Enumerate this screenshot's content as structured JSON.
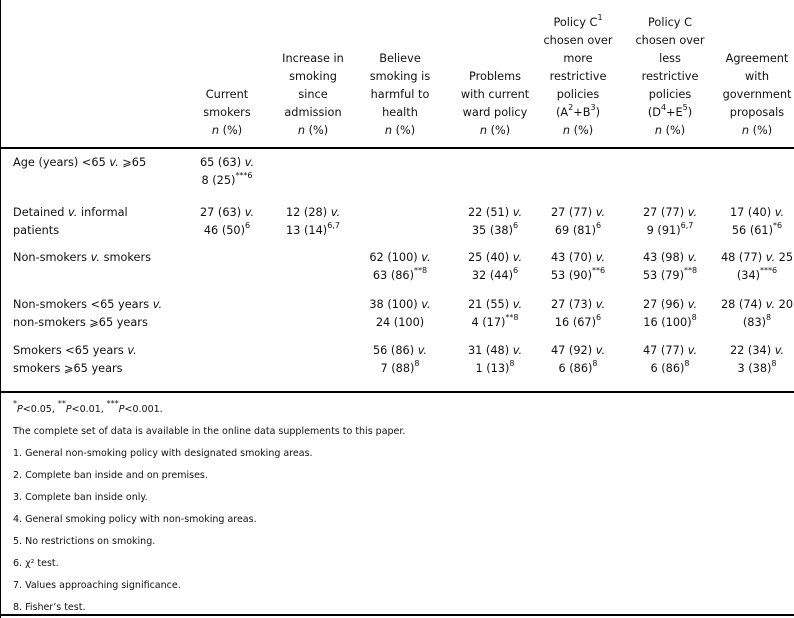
{
  "table": {
    "columns": [
      [
        [
          "Current"
        ],
        [
          "smokers"
        ],
        [
          {
            "i": "n"
          },
          " (%)"
        ]
      ],
      [
        [
          "Increase in"
        ],
        [
          "smoking"
        ],
        [
          "since"
        ],
        [
          "admission"
        ],
        [
          {
            "i": "n"
          },
          " (%)"
        ]
      ],
      [
        [
          "Believe"
        ],
        [
          "smoking is"
        ],
        [
          "harmful to"
        ],
        [
          "health"
        ],
        [
          {
            "i": "n"
          },
          " (%)"
        ]
      ],
      [
        [
          "Problems"
        ],
        [
          "with current"
        ],
        [
          "ward policy"
        ],
        [
          {
            "i": "n"
          },
          " (%)"
        ]
      ],
      [
        [
          "Policy C",
          {
            "sup": "1"
          }
        ],
        [
          "chosen over"
        ],
        [
          "more"
        ],
        [
          "restrictive"
        ],
        [
          "policies"
        ],
        [
          "(A",
          {
            "sup": "2"
          },
          "+B",
          {
            "sup": "3"
          },
          ")"
        ],
        [
          {
            "i": "n"
          },
          " (%)"
        ]
      ],
      [
        [
          "Policy C"
        ],
        [
          "chosen over"
        ],
        [
          "less"
        ],
        [
          "restrictive"
        ],
        [
          "policies"
        ],
        [
          "(D",
          {
            "sup": "4"
          },
          "+E",
          {
            "sup": "5"
          },
          ")"
        ],
        [
          {
            "i": "n"
          },
          " (%)"
        ]
      ],
      [
        [
          "Agreement"
        ],
        [
          "with"
        ],
        [
          "government"
        ],
        [
          "proposals"
        ],
        [
          {
            "i": "n"
          },
          " (%)"
        ]
      ]
    ],
    "rows": [
      {
        "label": [
          [
            "Age (years) <65 ",
            {
              "i": "v."
            },
            " ⩾65"
          ]
        ],
        "cells": [
          [
            [
              "65 (63) ",
              {
                "i": "v."
              }
            ],
            [
              "8 (25)",
              {
                "sup": "***6"
              }
            ]
          ],
          null,
          null,
          null,
          null,
          null,
          null
        ]
      },
      {
        "label": [
          [
            "Detained ",
            {
              "i": "v."
            },
            " informal"
          ],
          [
            "patients"
          ]
        ],
        "cells": [
          [
            [
              "27 (63) ",
              {
                "i": "v."
              }
            ],
            [
              "46 (50)",
              {
                "sup": "6"
              }
            ]
          ],
          [
            [
              "12 (28) ",
              {
                "i": "v."
              }
            ],
            [
              "13 (14)",
              {
                "sup": "6,7"
              }
            ]
          ],
          null,
          [
            [
              "22 (51) ",
              {
                "i": "v."
              }
            ],
            [
              "35 (38)",
              {
                "sup": "6"
              }
            ]
          ],
          [
            [
              "27 (77) ",
              {
                "i": "v."
              }
            ],
            [
              "69 (81)",
              {
                "sup": "6"
              }
            ]
          ],
          [
            [
              "27 (77) ",
              {
                "i": "v."
              }
            ],
            [
              "9 (91)",
              {
                "sup": "6,7"
              }
            ]
          ],
          [
            [
              "17 (40) ",
              {
                "i": "v."
              }
            ],
            [
              "56 (61)",
              {
                "sup": "*6"
              }
            ]
          ]
        ]
      },
      {
        "label": [
          [
            "Non-smokers ",
            {
              "i": "v."
            },
            " smokers"
          ]
        ],
        "cells": [
          null,
          null,
          [
            [
              "62 (100) ",
              {
                "i": "v."
              }
            ],
            [
              "63 (86)",
              {
                "sup": "**8"
              }
            ]
          ],
          [
            [
              "25 (40) ",
              {
                "i": "v."
              }
            ],
            [
              "32 (44)",
              {
                "sup": "6"
              }
            ]
          ],
          [
            [
              "43 (70) ",
              {
                "i": "v."
              }
            ],
            [
              "53 (90)",
              {
                "sup": "**6"
              }
            ]
          ],
          [
            [
              "43 (98) ",
              {
                "i": "v."
              }
            ],
            [
              "53 (79)",
              {
                "sup": "**8"
              }
            ]
          ],
          [
            [
              "48 (77) ",
              {
                "i": "v."
              },
              " 25"
            ],
            [
              "(34)",
              {
                "sup": "***6"
              }
            ]
          ]
        ]
      },
      {
        "label": [
          [
            "Non-smokers <65 years ",
            {
              "i": "v."
            }
          ],
          [
            "non-smokers ⩾65 years"
          ]
        ],
        "cells": [
          null,
          null,
          [
            [
              "38 (100) ",
              {
                "i": "v."
              }
            ],
            [
              "24 (100)"
            ]
          ],
          [
            [
              "21 (55) ",
              {
                "i": "v."
              }
            ],
            [
              "4 (17)",
              {
                "sup": "**8"
              }
            ]
          ],
          [
            [
              "27 (73) ",
              {
                "i": "v."
              }
            ],
            [
              "16 (67)",
              {
                "sup": "6"
              }
            ]
          ],
          [
            [
              "27 (96) ",
              {
                "i": "v."
              }
            ],
            [
              "16 (100)",
              {
                "sup": "8"
              }
            ]
          ],
          [
            [
              "28 (74) ",
              {
                "i": "v."
              },
              " 20"
            ],
            [
              "(83)",
              {
                "sup": "8"
              }
            ]
          ]
        ]
      },
      {
        "label": [
          [
            "Smokers <65 years ",
            {
              "i": "v."
            }
          ],
          [
            "smokers ⩾65 years"
          ]
        ],
        "cells": [
          null,
          null,
          [
            [
              "56 (86) ",
              {
                "i": "v."
              }
            ],
            [
              "7 (88)",
              {
                "sup": "8"
              }
            ]
          ],
          [
            [
              "31 (48) ",
              {
                "i": "v."
              }
            ],
            [
              "1 (13)",
              {
                "sup": "8"
              }
            ]
          ],
          [
            [
              "47 (92) ",
              {
                "i": "v."
              }
            ],
            [
              "6 (86)",
              {
                "sup": "8"
              }
            ]
          ],
          [
            [
              "47 (77) ",
              {
                "i": "v."
              }
            ],
            [
              "6 (86)",
              {
                "sup": "8"
              }
            ]
          ],
          [
            [
              "22 (34) ",
              {
                "i": "v."
              }
            ],
            [
              "3 (38)",
              {
                "sup": "8"
              }
            ]
          ]
        ]
      }
    ]
  },
  "footnotes": [
    [
      {
        "sup": "*"
      },
      {
        "i": "P"
      },
      "<0.05, ",
      {
        "sup": "**"
      },
      {
        "i": "P"
      },
      "<0.01, ",
      {
        "sup": "***"
      },
      {
        "i": "P"
      },
      "<0.001."
    ],
    [
      "The complete set of data is available in the online data supplements to this paper."
    ],
    [
      "1.  General non-smoking policy with designated smoking areas."
    ],
    [
      "2.  Complete ban inside and on premises."
    ],
    [
      "3.  Complete ban inside only."
    ],
    [
      "4.  General smoking policy with non-smoking areas."
    ],
    [
      "5.  No restrictions on smoking."
    ],
    [
      "6.  χ² test."
    ],
    [
      "7.  Values approaching significance."
    ],
    [
      "8.  Fisher’s test."
    ]
  ]
}
